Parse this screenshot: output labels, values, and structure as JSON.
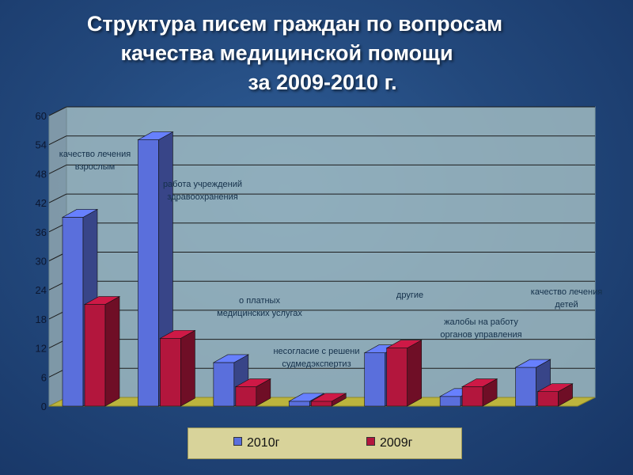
{
  "title": {
    "line1": "Структура писем граждан по вопросам",
    "line2": "качества медицинской помощи",
    "line3": "за 2009-2010 г."
  },
  "colors": {
    "series_2010": "#5a6fdc",
    "series_2009": "#b3163d",
    "plot_wall": "#a8c2c6",
    "floor": "#bcb43d",
    "label_text": "#14304a"
  },
  "chart_data": {
    "type": "bar",
    "style": "3d-clustered-column",
    "categories": [
      "качество лечения взрослым",
      "работа учреждений здравоохранения",
      "о платных медицинских услугах",
      "несогласие с решением судмедэкспертизы",
      "другие",
      "жалобы на работу органов управления",
      "качество лечения детей"
    ],
    "category_labels": [
      [
        "качество лечения",
        "взрослым"
      ],
      [
        "работа учреждений",
        "здравоохранения"
      ],
      [
        "о платных",
        "медицинских услугах"
      ],
      [
        "несогласие с решени",
        "судмедэкспертиз"
      ],
      [
        "другие"
      ],
      [
        "жалобы на работу",
        "органов управления"
      ],
      [
        "качество лечения",
        "детей"
      ]
    ],
    "series": [
      {
        "name": "2010г",
        "values": [
          39,
          55,
          9,
          1,
          11,
          2,
          8
        ]
      },
      {
        "name": "2009г",
        "values": [
          21,
          14,
          4,
          1,
          12,
          4,
          3
        ]
      }
    ],
    "yticks": [
      "0",
      "6",
      "12",
      "18",
      "24",
      "30",
      "36",
      "42",
      "48",
      "54",
      "60"
    ],
    "ylim": [
      0,
      60
    ],
    "grid": true,
    "legend_position": "bottom"
  }
}
